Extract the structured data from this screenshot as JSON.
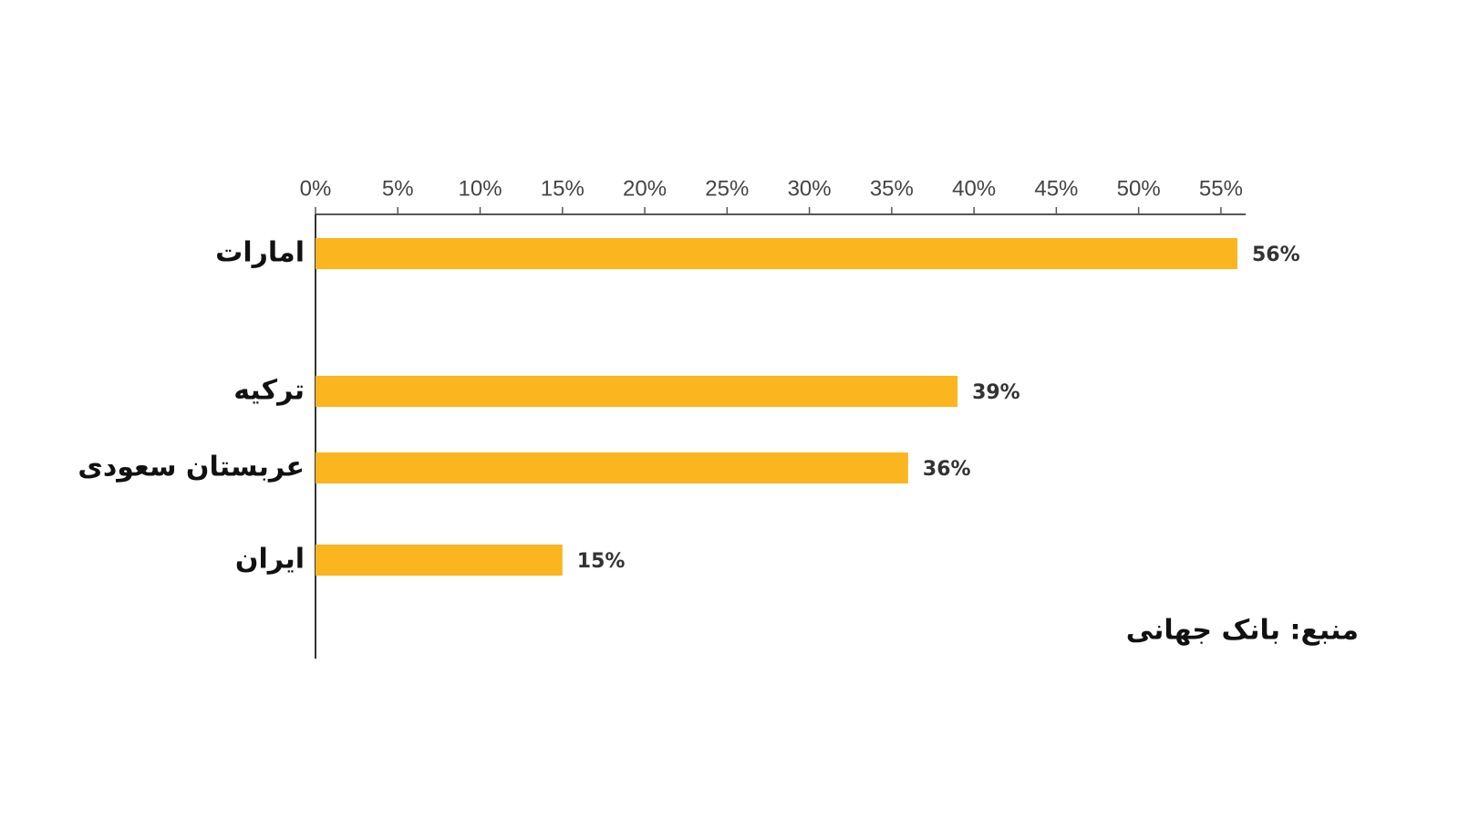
{
  "chart_data": {
    "type": "bar",
    "orientation": "horizontal",
    "categories": [
      "امارات",
      "ترکیه",
      "عربستان سعودی",
      "ایران"
    ],
    "values": [
      56,
      39,
      36,
      15
    ],
    "value_labels": [
      "56%",
      "39%",
      "36%",
      "15%"
    ],
    "color": "#fbb51e",
    "xlim": [
      0,
      56.5
    ],
    "xticks": [
      {
        "value": 0,
        "label": "0%"
      },
      {
        "value": 5,
        "label": "5%"
      },
      {
        "value": 10,
        "label": "10%"
      },
      {
        "value": 15,
        "label": "15%"
      },
      {
        "value": 20,
        "label": "20%"
      },
      {
        "value": 25,
        "label": "25%"
      },
      {
        "value": 30,
        "label": "30%"
      },
      {
        "value": 35,
        "label": "35%"
      },
      {
        "value": 40,
        "label": "40%"
      },
      {
        "value": 45,
        "label": "45%"
      },
      {
        "value": 50,
        "label": "50%"
      },
      {
        "value": 55,
        "label": "55%"
      }
    ],
    "source": "منبع: بانک جهانی"
  }
}
